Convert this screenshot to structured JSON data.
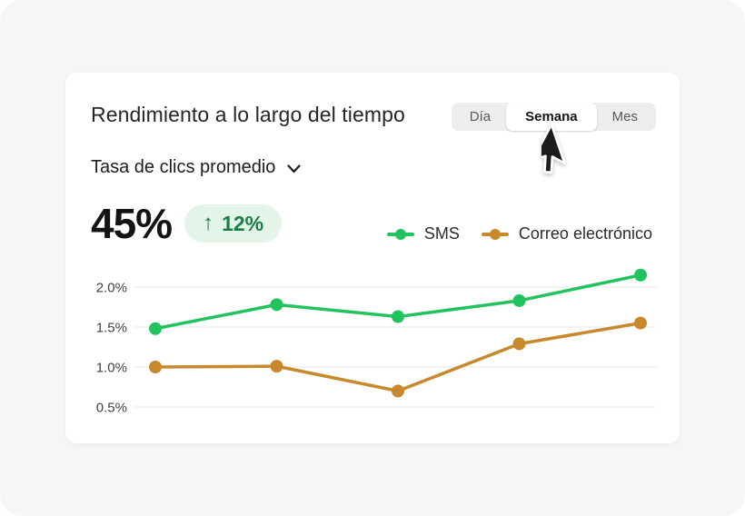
{
  "header": {
    "title": "Rendimiento a lo largo del tiempo",
    "tabs": [
      {
        "label": "Día",
        "active": false
      },
      {
        "label": "Semana",
        "active": true
      },
      {
        "label": "Mes",
        "active": false
      }
    ]
  },
  "metric_selector": {
    "label": "Tasa de clics promedio"
  },
  "kpi": {
    "value": "45%",
    "delta": "12%",
    "delta_arrow": "↑",
    "delta_direction": "up"
  },
  "legend": [
    {
      "label": "SMS",
      "color": "#22c35d"
    },
    {
      "label": "Correo electrónico",
      "color": "#c8882c"
    }
  ],
  "colors": {
    "background": "#f6f6f7",
    "card": "#ffffff",
    "accent_green": "#22c35d",
    "accent_orange": "#c8882c",
    "badge_bg": "#e2f5e8",
    "badge_text": "#187e44",
    "gridline": "#e8e7e7"
  },
  "chart_data": {
    "type": "line",
    "x": [
      1,
      2,
      3,
      4,
      5
    ],
    "series": [
      {
        "name": "SMS",
        "color": "#22c35d",
        "values": [
          1.48,
          1.78,
          1.63,
          1.83,
          2.15
        ]
      },
      {
        "name": "Correo electrónico",
        "color": "#c8882c",
        "values": [
          1.0,
          1.01,
          0.7,
          1.29,
          1.55
        ]
      }
    ],
    "title": "Tasa de clics promedio",
    "xlabel": "",
    "ylabel": "",
    "yticks": [
      2.0,
      1.5,
      1.0,
      0.5
    ],
    "ytick_labels": [
      "2.0%",
      "1.5%",
      "1.0%",
      "0.5%"
    ],
    "ylim": [
      0.35,
      2.3
    ],
    "grid": "horizontal",
    "legend_position": "top-right"
  }
}
